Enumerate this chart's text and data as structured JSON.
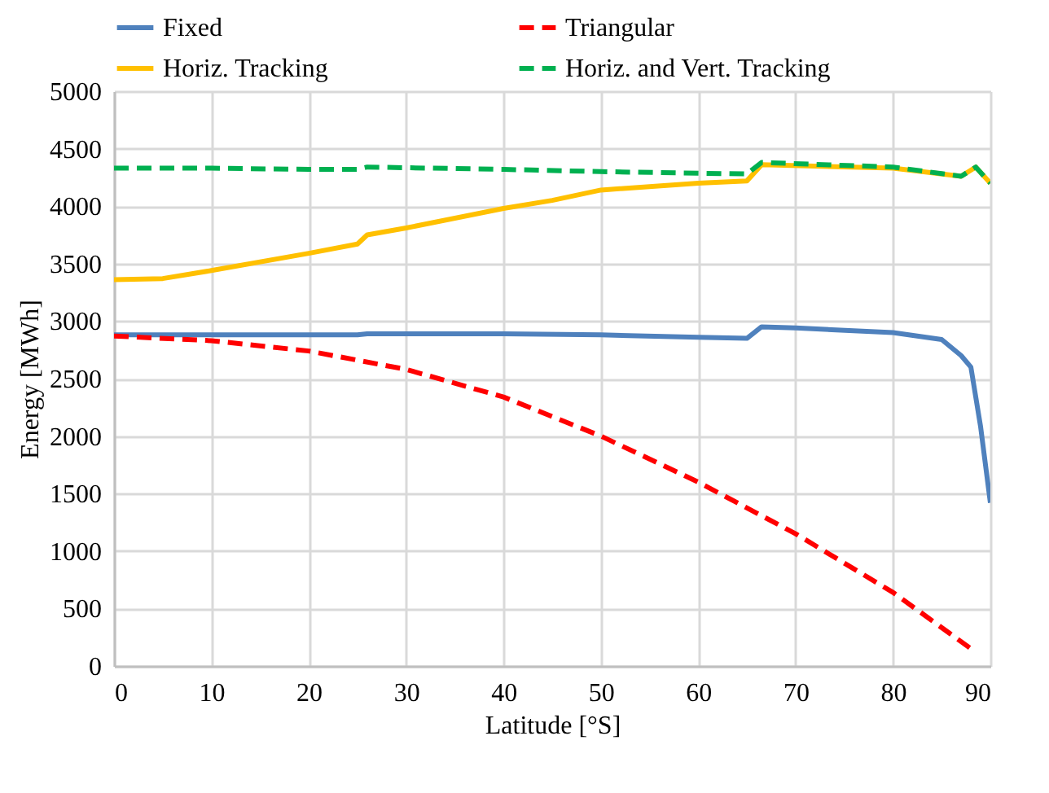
{
  "chart_data": {
    "type": "line",
    "xlabel": "Latitude [°S]",
    "ylabel": "Energy [MWh]",
    "xlim": [
      0,
      90
    ],
    "xticks": [
      0,
      10,
      20,
      30,
      40,
      50,
      60,
      70,
      80,
      90
    ],
    "ylim": [
      0,
      5000
    ],
    "yticks": [
      0,
      500,
      1000,
      1500,
      2000,
      2500,
      3000,
      3500,
      4000,
      4500,
      5000
    ],
    "grid": true,
    "legend": "top",
    "series": [
      {
        "name": "Fixed",
        "color": "#4f81bd",
        "line_style": "solid",
        "x": [
          0,
          10,
          20,
          25,
          26,
          30,
          40,
          50,
          60,
          65,
          66.5,
          70,
          80,
          85,
          87,
          88,
          89,
          90
        ],
        "values": [
          2880,
          2880,
          2880,
          2880,
          2890,
          2890,
          2890,
          2880,
          2860,
          2850,
          2950,
          2940,
          2900,
          2840,
          2700,
          2600,
          2080,
          1420
        ]
      },
      {
        "name": "Triangular",
        "color": "#ff0000",
        "line_style": "dashed",
        "x": [
          0,
          10,
          20,
          30,
          40,
          45,
          50,
          60,
          70,
          80,
          88.5
        ],
        "values": [
          2870,
          2830,
          2740,
          2580,
          2340,
          2170,
          2000,
          1600,
          1150,
          640,
          120
        ]
      },
      {
        "name": "Horiz. Tracking",
        "color": "#ffc000",
        "line_style": "solid",
        "x": [
          0,
          5,
          10,
          20,
          25,
          26,
          30,
          40,
          45,
          50,
          60,
          65,
          66.5,
          80,
          87,
          88.5,
          90
        ],
        "values": [
          3360,
          3370,
          3440,
          3590,
          3670,
          3750,
          3810,
          3980,
          4050,
          4140,
          4200,
          4220,
          4360,
          4330,
          4260,
          4340,
          4200
        ]
      },
      {
        "name": "Horiz. and Vert. Tracking",
        "color": "#00b050",
        "line_style": "dashed",
        "x": [
          0,
          10,
          20,
          25,
          26,
          40,
          50,
          65,
          66.5,
          80,
          87,
          88.5,
          90
        ],
        "values": [
          4330,
          4330,
          4320,
          4320,
          4340,
          4320,
          4300,
          4280,
          4380,
          4340,
          4260,
          4340,
          4200
        ]
      }
    ]
  }
}
